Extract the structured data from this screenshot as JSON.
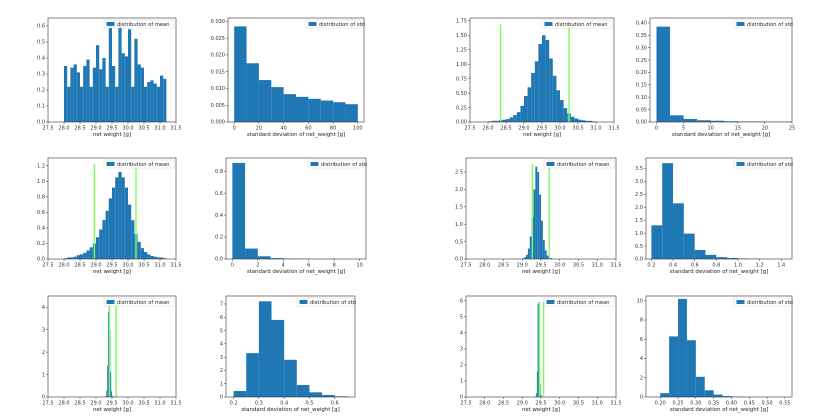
{
  "colors": {
    "bar": "#1f77b4",
    "ci_line": "#7cfc5c",
    "axis": "#333333"
  },
  "chart_data": [
    {
      "type": "bar",
      "variant": "mean",
      "legend": "distribution of mean",
      "legend_placement": "top-right",
      "xlabel": "net weight [g]",
      "xlim": [
        27.5,
        31.5
      ],
      "ylim": [
        0,
        0.65
      ],
      "xticks": [
        "27.5",
        "28.0",
        "28.5",
        "29.0",
        "29.5",
        "30.0",
        "30.5",
        "31.0",
        "31.5"
      ],
      "yticks": [
        "0.0",
        "0.1",
        "0.2",
        "0.3",
        "0.4",
        "0.5",
        "0.6"
      ],
      "x_min": 28.0,
      "bin_width": 0.1,
      "values": [
        0.35,
        0.22,
        0.34,
        0.36,
        0.31,
        0.22,
        0.35,
        0.39,
        0.22,
        0.34,
        0.48,
        0.33,
        0.4,
        0.22,
        0.61,
        0.35,
        0.22,
        0.61,
        0.43,
        0.41,
        0.58,
        0.22,
        0.52,
        0.36,
        0.34,
        0.22,
        0.25,
        0.26,
        0.24,
        0.22,
        0.29,
        0.27
      ],
      "ci_lines": []
    },
    {
      "type": "bar",
      "variant": "std",
      "legend": "distribution of std",
      "legend_placement": "top-right",
      "xlabel": "standard deviation of net_weight [g]",
      "xlim": [
        -5,
        105
      ],
      "ylim": [
        0,
        0.031
      ],
      "xticks": [
        "0",
        "20",
        "40",
        "60",
        "80",
        "100"
      ],
      "yticks": [
        "0.000",
        "0.005",
        "0.010",
        "0.015",
        "0.020",
        "0.025",
        "0.030"
      ],
      "x_min": 0,
      "bin_width": 10,
      "values": [
        0.0285,
        0.0175,
        0.0125,
        0.0104,
        0.0083,
        0.0075,
        0.0069,
        0.0064,
        0.0059,
        0.0053
      ],
      "ci_lines": []
    },
    {
      "type": "bar",
      "variant": "mean",
      "legend": "distribution of mean",
      "legend_placement": "top-right",
      "xlabel": "net weight [g]",
      "xlim": [
        27.5,
        31.5
      ],
      "ylim": [
        0,
        1.8
      ],
      "xticks": [
        "27.5",
        "28.0",
        "28.5",
        "29.0",
        "29.5",
        "30.0",
        "30.5",
        "31.0",
        "31.5"
      ],
      "yticks": [
        "0.00",
        "0.25",
        "0.50",
        "0.75",
        "1.00",
        "1.25",
        "1.50",
        "1.75"
      ],
      "x_min": 28.0,
      "bin_width": 0.1,
      "values": [
        0.01,
        0.02,
        0.02,
        0.03,
        0.04,
        0.05,
        0.08,
        0.12,
        0.17,
        0.28,
        0.45,
        0.6,
        0.85,
        1.05,
        1.35,
        1.5,
        1.42,
        1.1,
        0.8,
        0.55,
        0.38,
        0.24,
        0.15,
        0.09,
        0.06,
        0.04,
        0.03,
        0.02,
        0.02,
        0.01
      ],
      "ci_lines": [
        28.35,
        30.25
      ]
    },
    {
      "type": "bar",
      "variant": "std",
      "legend": "distribution of std",
      "legend_placement": "top-right",
      "xlabel": "standard deviation of net_weight [g]",
      "xlim": [
        -1.2,
        25
      ],
      "ylim": [
        0,
        0.42
      ],
      "xticks": [
        "0",
        "5",
        "10",
        "15",
        "20",
        "25"
      ],
      "yticks": [
        "0.00",
        "0.05",
        "0.10",
        "0.15",
        "0.20",
        "0.25",
        "0.30",
        "0.35",
        "0.40"
      ],
      "x_min": 0,
      "bin_width": 2.5,
      "values": [
        0.385,
        0.027,
        0.012,
        0.007,
        0.005,
        0.003,
        0.002,
        0.002,
        0.001,
        0.001
      ],
      "ci_lines": []
    },
    {
      "type": "bar",
      "variant": "mean",
      "legend": "distribution of mean",
      "legend_placement": "top-right",
      "xlabel": "net weight [g]",
      "xlim": [
        27.5,
        31.5
      ],
      "ylim": [
        0,
        1.3
      ],
      "xticks": [
        "27.5",
        "28.0",
        "28.5",
        "29.0",
        "29.5",
        "30.0",
        "30.5",
        "31.0",
        "31.5"
      ],
      "yticks": [
        "0.0",
        "0.2",
        "0.4",
        "0.6",
        "0.8",
        "1.0",
        "1.2"
      ],
      "x_min": 28.0,
      "bin_width": 0.1,
      "values": [
        0.01,
        0.02,
        0.02,
        0.03,
        0.05,
        0.06,
        0.08,
        0.11,
        0.15,
        0.2,
        0.28,
        0.38,
        0.5,
        0.62,
        0.78,
        0.92,
        1.05,
        1.12,
        1.05,
        0.92,
        0.7,
        0.5,
        0.32,
        0.22,
        0.14,
        0.09,
        0.06,
        0.04,
        0.03,
        0.02,
        0.02,
        0.01
      ],
      "ci_lines": [
        28.95,
        30.25
      ]
    },
    {
      "type": "bar",
      "variant": "std",
      "legend": "distribution of std",
      "legend_placement": "top-right",
      "xlabel": "standard deviation of net_weight [g]",
      "xlim": [
        -0.5,
        10.5
      ],
      "ylim": [
        0,
        0.92
      ],
      "xticks": [
        "0",
        "2",
        "4",
        "6",
        "8",
        "10"
      ],
      "yticks": [
        "0.0",
        "0.2",
        "0.4",
        "0.6",
        "0.8"
      ],
      "x_min": 0,
      "bin_width": 1,
      "values": [
        0.875,
        0.095,
        0.025,
        0.008,
        0.003,
        0.002,
        0.001,
        0.001,
        0.0,
        0.0
      ],
      "ci_lines": []
    },
    {
      "type": "bar",
      "variant": "mean",
      "legend": "distribution of mean",
      "legend_placement": "top-right",
      "xlabel": "net weight [g]",
      "xlim": [
        27.5,
        31.5
      ],
      "ylim": [
        0,
        2.9
      ],
      "xticks": [
        "27.5",
        "28.0",
        "28.5",
        "29.0",
        "29.5",
        "30.0",
        "30.5",
        "31.0",
        "31.5"
      ],
      "yticks": [
        "0.0",
        "0.5",
        "1.0",
        "1.5",
        "2.0",
        "2.5"
      ],
      "x_min": 29.0,
      "bin_width": 0.05,
      "values": [
        0.02,
        0.05,
        0.12,
        0.3,
        0.65,
        1.2,
        2.0,
        2.65,
        2.5,
        1.85,
        1.1,
        0.55,
        0.25,
        0.1,
        0.04,
        0.02
      ],
      "ci_lines": [
        29.27,
        29.72
      ]
    },
    {
      "type": "bar",
      "variant": "std",
      "legend": "distribution of std",
      "legend_placement": "top-right",
      "xlabel": "standard deviation of net_weight [g]",
      "xlim": [
        0.15,
        1.5
      ],
      "ylim": [
        0,
        3.9
      ],
      "xticks": [
        "0.2",
        "0.4",
        "0.6",
        "0.8",
        "1.0",
        "1.2",
        "1.4"
      ],
      "yticks": [
        "0.0",
        "0.5",
        "1.0",
        "1.5",
        "2.0",
        "2.5",
        "3.0",
        "3.5"
      ],
      "x_min": 0.2,
      "bin_width": 0.1,
      "values": [
        1.3,
        3.7,
        2.15,
        0.98,
        0.35,
        0.16,
        0.07,
        0.04,
        0.02,
        0.01
      ],
      "ci_lines": []
    },
    {
      "type": "bar",
      "variant": "mean",
      "legend": "distribution of mean",
      "legend_placement": "top-right",
      "xlabel": "net weight [g]",
      "xlim": [
        27.5,
        31.5
      ],
      "ylim": [
        0,
        4.5
      ],
      "xticks": [
        "27.5",
        "28.0",
        "28.5",
        "29.0",
        "29.5",
        "30.0",
        "30.5",
        "31.0",
        "31.5"
      ],
      "yticks": [
        "0",
        "1",
        "2",
        "3",
        "4"
      ],
      "x_min": 29.3,
      "bin_width": 0.025,
      "values": [
        0.05,
        0.3,
        1.4,
        3.8,
        4.1,
        3.0,
        1.1,
        0.25,
        0.05,
        0.02,
        0.01,
        0.01,
        0.01
      ],
      "ci_lines": [
        29.42,
        29.63
      ]
    },
    {
      "type": "bar",
      "variant": "std",
      "legend": "distribution of std",
      "legend_placement": "top-right",
      "xlabel": "standard deviation of net_weight [g]",
      "xlim": [
        0.17,
        0.68
      ],
      "ylim": [
        0,
        7.6
      ],
      "xticks": [
        "0.2",
        "0.3",
        "0.4",
        "0.5",
        "0.6"
      ],
      "yticks": [
        "0",
        "1",
        "2",
        "3",
        "4",
        "5",
        "6",
        "7"
      ],
      "x_min": 0.2,
      "bin_width": 0.05,
      "values": [
        0.45,
        3.3,
        7.2,
        5.8,
        2.8,
        0.9,
        0.35,
        0.15,
        0.05
      ],
      "ci_lines": []
    },
    {
      "type": "bar",
      "variant": "mean",
      "legend": "distribution of mean",
      "legend_placement": "top-right",
      "xlabel": "net weight [g]",
      "xlim": [
        27.5,
        31.5
      ],
      "ylim": [
        0,
        6.3
      ],
      "xticks": [
        "27.5",
        "28.0",
        "28.5",
        "29.0",
        "29.5",
        "30.0",
        "30.5",
        "31.0",
        "31.5"
      ],
      "yticks": [
        "0",
        "1",
        "2",
        "3",
        "4",
        "5",
        "6"
      ],
      "x_min": 29.35,
      "bin_width": 0.02,
      "values": [
        0.05,
        0.25,
        1.6,
        5.8,
        5.9,
        3.2,
        0.8,
        0.15,
        0.03,
        0.01
      ],
      "ci_lines": [
        29.46,
        29.57
      ]
    },
    {
      "type": "bar",
      "variant": "std",
      "legend": "distribution of std",
      "legend_placement": "top-right",
      "xlabel": "standard deviation of net_weight [g]",
      "xlim": [
        0.16,
        0.57
      ],
      "ylim": [
        0,
        10.5
      ],
      "xticks": [
        "0.20",
        "0.25",
        "0.30",
        "0.35",
        "0.40",
        "0.45",
        "0.50",
        "0.55"
      ],
      "yticks": [
        "0",
        "2",
        "4",
        "6",
        "8",
        "10"
      ],
      "x_min": 0.2,
      "bin_width": 0.025,
      "values": [
        0.4,
        6.3,
        10.2,
        5.9,
        2.1,
        0.7,
        0.25,
        0.1,
        0.04,
        0.02
      ],
      "ci_lines": []
    }
  ]
}
